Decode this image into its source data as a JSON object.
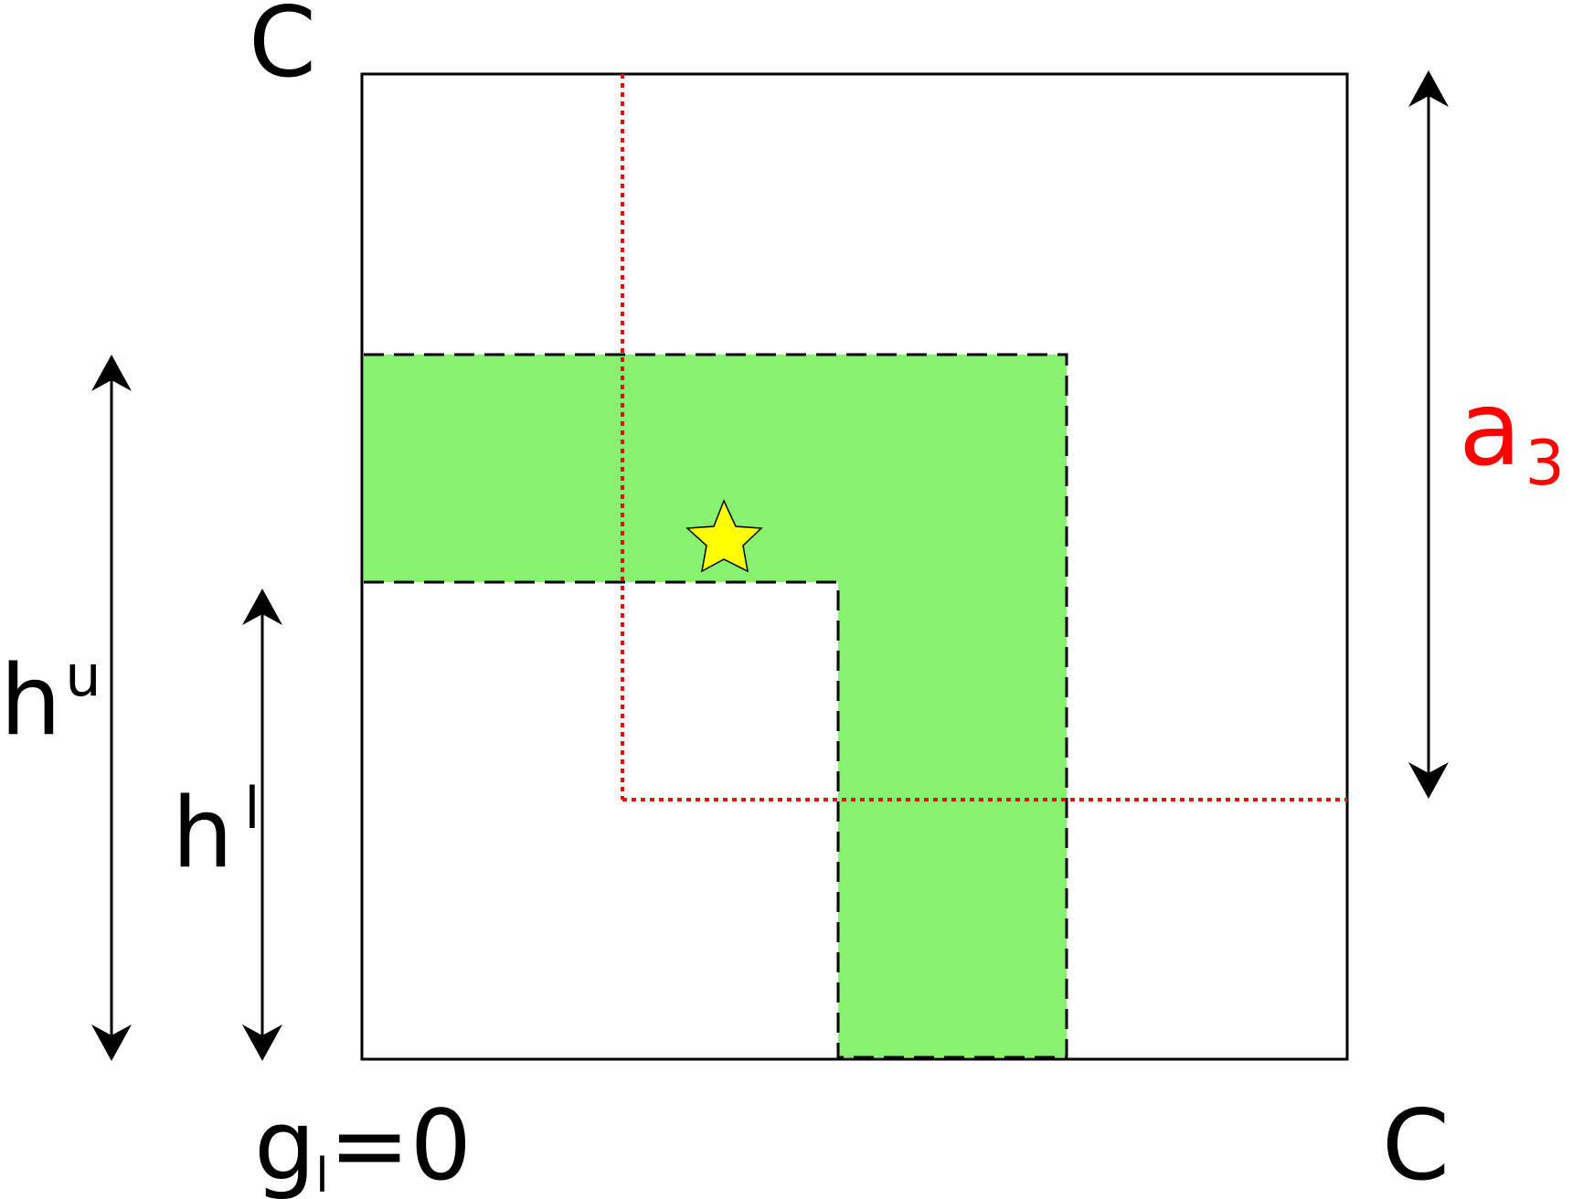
{
  "labels": {
    "top_left": "C",
    "bottom_right": "C",
    "bottom_left_base": "g",
    "bottom_left_sub": "l",
    "bottom_left_rest": "=0",
    "hu_base": "h",
    "hu_sup": "u",
    "hl_base": "h",
    "hl_sup": "l",
    "a3_base": "a",
    "a3_sub": "3"
  },
  "colors": {
    "region_fill": "#86f270",
    "dotted_line": "#ff0000",
    "star_fill": "#ffff00",
    "text": "#000000",
    "a3_text": "#ff0000"
  },
  "icons": {
    "marker": "star-icon"
  }
}
